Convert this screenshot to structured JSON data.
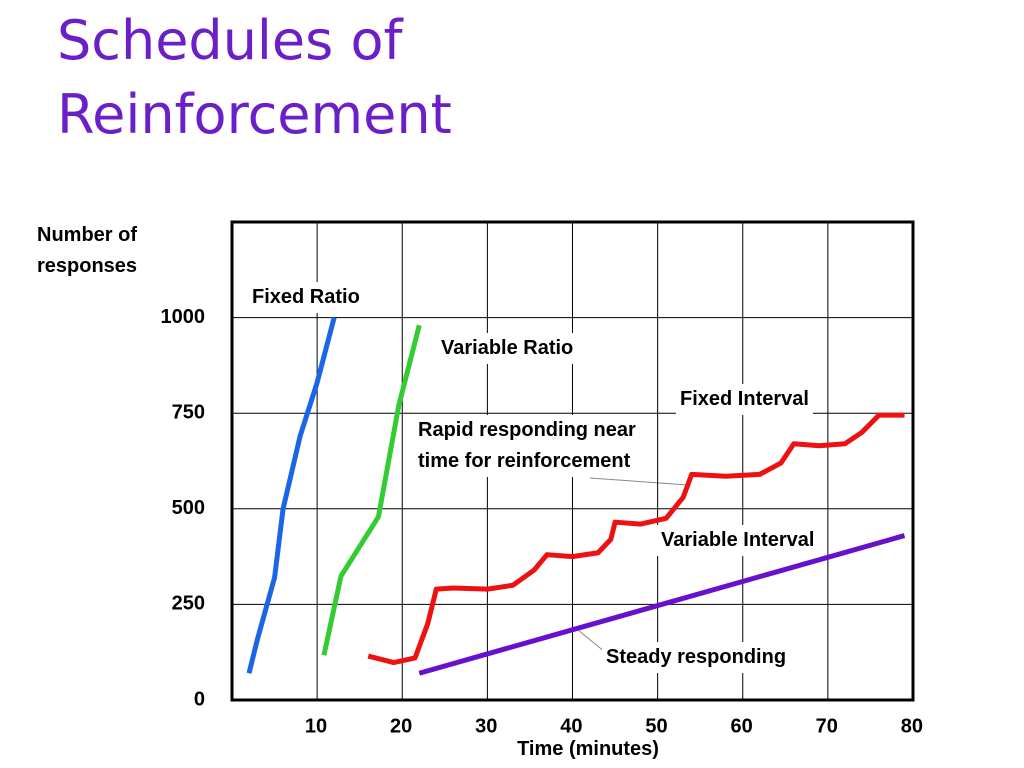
{
  "title": "Schedules of Reinforcement",
  "chart_data": {
    "type": "line",
    "xlabel": "Time (minutes)",
    "ylabel": "Number of responses",
    "xlim": [
      0,
      80
    ],
    "ylim": [
      0,
      1250
    ],
    "xticks": [
      10,
      20,
      30,
      40,
      50,
      60,
      70,
      80
    ],
    "yticks": [
      0,
      250,
      500,
      750,
      1000
    ],
    "grid": true,
    "series": [
      {
        "name": "Fixed Ratio",
        "color": "#1a66e8",
        "x": [
          2,
          3,
          5,
          6,
          8,
          10,
          12
        ],
        "values": [
          70,
          160,
          320,
          500,
          690,
          830,
          1000
        ]
      },
      {
        "name": "Variable Ratio",
        "color": "#33cc33",
        "x": [
          10.8,
          12.8,
          17.2,
          19.6,
          22
        ],
        "values": [
          117,
          324,
          479,
          771,
          980
        ]
      },
      {
        "name": "Fixed Interval",
        "color": "#ee1111",
        "x": [
          16,
          19,
          21.5,
          23,
          24,
          26,
          30,
          33,
          35.5,
          37,
          40,
          43,
          44.5,
          45,
          48,
          51,
          53,
          54,
          58,
          62,
          64.5,
          66,
          69,
          72,
          74,
          76,
          79
        ],
        "values": [
          115,
          98,
          110,
          200,
          290,
          293,
          290,
          300,
          340,
          380,
          375,
          385,
          420,
          465,
          460,
          475,
          530,
          590,
          585,
          590,
          620,
          670,
          665,
          670,
          700,
          745,
          745
        ]
      },
      {
        "name": "Variable Interval",
        "color": "#6611cc",
        "x": [
          22,
          79
        ],
        "values": [
          70,
          430
        ]
      }
    ],
    "annotations": [
      "Rapid responding near time for reinforcement",
      "Steady responding"
    ]
  }
}
